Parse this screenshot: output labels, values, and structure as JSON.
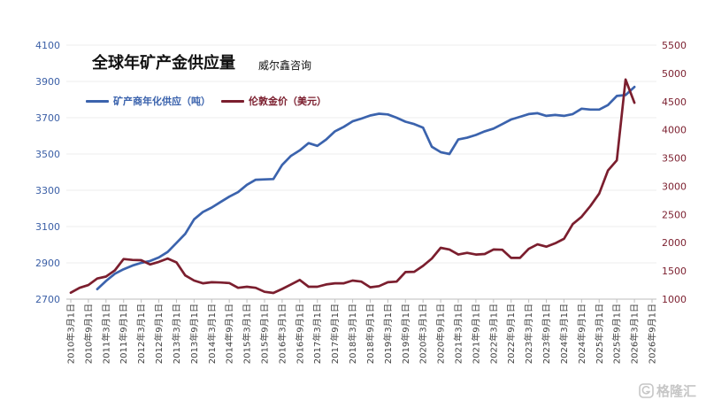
{
  "chart_data": {
    "type": "line",
    "title": "全球年矿产金供应量",
    "source": "威尔鑫咨询",
    "legend_position": "top-left",
    "grid": true,
    "x_axis": {
      "type": "date",
      "range": [
        "2010-03-01",
        "2026-09-01"
      ],
      "tick_labels": [
        "2010年3月1日",
        "2010年9月1日",
        "2011年3月1日",
        "2011年9月1日",
        "2012年3月1日",
        "2012年9月1日",
        "2013年3月1日",
        "2013年9月1日",
        "2014年3月1日",
        "2014年9月1日",
        "2015年3月1日",
        "2015年9月1日",
        "2016年3月1日",
        "2016年9月1日",
        "2017年3月1日",
        "2017年9月1日",
        "2018年3月1日",
        "2018年9月1日",
        "2019年3月1日",
        "2019年9月1日",
        "2020年3月1日",
        "2020年9月1日",
        "2021年3月1日",
        "2021年9月1日",
        "2022年3月1日",
        "2022年9月1日",
        "2023年3月1日",
        "2023年9月1日",
        "2024年3月1日",
        "2024年9月1日",
        "2025年3月1日",
        "2025年9月1日",
        "2026年3月1日",
        "2026年9月1日"
      ],
      "label_color": "#404040"
    },
    "y_left": {
      "range": [
        2700,
        4100
      ],
      "ticks": [
        "2700",
        "2900",
        "3100",
        "3300",
        "3500",
        "3700",
        "3900",
        "4100"
      ],
      "color": "#3b5fa6"
    },
    "y_right": {
      "range": [
        1000,
        5500
      ],
      "ticks": [
        "1000",
        "1500",
        "2000",
        "2500",
        "3000",
        "3500",
        "4000",
        "4500",
        "5000",
        "5500"
      ],
      "color": "#7b1e2e"
    },
    "series": [
      {
        "name": "矿产商年化供应（吨）",
        "axis": "left",
        "color": "#3b63ad",
        "points": [
          [
            "2010-12-01",
            2755
          ],
          [
            "2011-03-01",
            2800
          ],
          [
            "2011-06-01",
            2840
          ],
          [
            "2011-09-01",
            2865
          ],
          [
            "2011-12-01",
            2885
          ],
          [
            "2012-03-01",
            2900
          ],
          [
            "2012-06-01",
            2910
          ],
          [
            "2012-09-01",
            2930
          ],
          [
            "2012-12-01",
            2960
          ],
          [
            "2013-03-01",
            3010
          ],
          [
            "2013-06-01",
            3060
          ],
          [
            "2013-09-01",
            3140
          ],
          [
            "2013-12-01",
            3180
          ],
          [
            "2014-03-01",
            3205
          ],
          [
            "2014-06-01",
            3235
          ],
          [
            "2014-09-01",
            3265
          ],
          [
            "2014-12-01",
            3290
          ],
          [
            "2015-03-01",
            3330
          ],
          [
            "2015-06-01",
            3358
          ],
          [
            "2015-09-01",
            3360
          ],
          [
            "2015-12-01",
            3362
          ],
          [
            "2016-03-01",
            3440
          ],
          [
            "2016-06-01",
            3490
          ],
          [
            "2016-09-01",
            3520
          ],
          [
            "2016-12-01",
            3560
          ],
          [
            "2017-03-01",
            3545
          ],
          [
            "2017-06-01",
            3580
          ],
          [
            "2017-09-01",
            3625
          ],
          [
            "2017-12-01",
            3650
          ],
          [
            "2018-03-01",
            3680
          ],
          [
            "2018-06-01",
            3695
          ],
          [
            "2018-09-01",
            3712
          ],
          [
            "2018-12-01",
            3722
          ],
          [
            "2019-03-01",
            3718
          ],
          [
            "2019-06-01",
            3700
          ],
          [
            "2019-09-01",
            3678
          ],
          [
            "2019-12-01",
            3665
          ],
          [
            "2020-03-01",
            3645
          ],
          [
            "2020-06-01",
            3540
          ],
          [
            "2020-09-01",
            3510
          ],
          [
            "2020-12-01",
            3500
          ],
          [
            "2021-03-01",
            3580
          ],
          [
            "2021-06-01",
            3590
          ],
          [
            "2021-09-01",
            3605
          ],
          [
            "2021-12-01",
            3625
          ],
          [
            "2022-03-01",
            3640
          ],
          [
            "2022-06-01",
            3665
          ],
          [
            "2022-09-01",
            3690
          ],
          [
            "2022-12-01",
            3705
          ],
          [
            "2023-03-01",
            3720
          ],
          [
            "2023-06-01",
            3725
          ],
          [
            "2023-09-01",
            3710
          ],
          [
            "2023-12-01",
            3715
          ],
          [
            "2024-03-01",
            3710
          ],
          [
            "2024-06-01",
            3720
          ],
          [
            "2024-09-01",
            3750
          ],
          [
            "2024-12-01",
            3745
          ],
          [
            "2025-03-01",
            3745
          ],
          [
            "2025-06-01",
            3770
          ],
          [
            "2025-09-01",
            3820
          ],
          [
            "2025-12-01",
            3825
          ],
          [
            "2026-03-01",
            3870
          ]
        ]
      },
      {
        "name": "伦敦金价（美元）",
        "axis": "right",
        "color": "#7b1e2e",
        "points": [
          [
            "2010-03-01",
            1115
          ],
          [
            "2010-06-01",
            1200
          ],
          [
            "2010-09-01",
            1250
          ],
          [
            "2010-12-01",
            1365
          ],
          [
            "2011-03-01",
            1400
          ],
          [
            "2011-06-01",
            1510
          ],
          [
            "2011-09-01",
            1710
          ],
          [
            "2011-12-01",
            1695
          ],
          [
            "2012-03-01",
            1690
          ],
          [
            "2012-06-01",
            1615
          ],
          [
            "2012-09-01",
            1660
          ],
          [
            "2012-12-01",
            1720
          ],
          [
            "2013-03-01",
            1650
          ],
          [
            "2013-06-01",
            1420
          ],
          [
            "2013-09-01",
            1330
          ],
          [
            "2013-12-01",
            1280
          ],
          [
            "2014-03-01",
            1300
          ],
          [
            "2014-06-01",
            1295
          ],
          [
            "2014-09-01",
            1285
          ],
          [
            "2014-12-01",
            1200
          ],
          [
            "2015-03-01",
            1220
          ],
          [
            "2015-06-01",
            1200
          ],
          [
            "2015-09-01",
            1130
          ],
          [
            "2015-12-01",
            1110
          ],
          [
            "2016-03-01",
            1180
          ],
          [
            "2016-06-01",
            1260
          ],
          [
            "2016-09-01",
            1340
          ],
          [
            "2016-12-01",
            1220
          ],
          [
            "2017-03-01",
            1220
          ],
          [
            "2017-06-01",
            1260
          ],
          [
            "2017-09-01",
            1280
          ],
          [
            "2017-12-01",
            1280
          ],
          [
            "2018-03-01",
            1330
          ],
          [
            "2018-06-01",
            1310
          ],
          [
            "2018-09-01",
            1210
          ],
          [
            "2018-12-01",
            1230
          ],
          [
            "2019-03-01",
            1300
          ],
          [
            "2019-06-01",
            1310
          ],
          [
            "2019-09-01",
            1480
          ],
          [
            "2019-12-01",
            1485
          ],
          [
            "2020-03-01",
            1590
          ],
          [
            "2020-06-01",
            1720
          ],
          [
            "2020-09-01",
            1910
          ],
          [
            "2020-12-01",
            1880
          ],
          [
            "2021-03-01",
            1790
          ],
          [
            "2021-06-01",
            1820
          ],
          [
            "2021-09-01",
            1790
          ],
          [
            "2021-12-01",
            1800
          ],
          [
            "2022-03-01",
            1880
          ],
          [
            "2022-06-01",
            1875
          ],
          [
            "2022-09-01",
            1730
          ],
          [
            "2022-12-01",
            1730
          ],
          [
            "2023-03-01",
            1890
          ],
          [
            "2023-06-01",
            1970
          ],
          [
            "2023-09-01",
            1930
          ],
          [
            "2023-12-01",
            1990
          ],
          [
            "2024-03-01",
            2070
          ],
          [
            "2024-06-01",
            2330
          ],
          [
            "2024-09-01",
            2460
          ],
          [
            "2024-12-01",
            2650
          ],
          [
            "2025-03-01",
            2870
          ],
          [
            "2025-06-01",
            3280
          ],
          [
            "2025-09-01",
            3460
          ],
          [
            "2025-12-01",
            4890
          ],
          [
            "2026-03-01",
            4480
          ]
        ]
      }
    ]
  },
  "watermark": {
    "text": "格隆汇",
    "icon": "gelonghui-logo-icon",
    "color": "#b8b8b8"
  }
}
